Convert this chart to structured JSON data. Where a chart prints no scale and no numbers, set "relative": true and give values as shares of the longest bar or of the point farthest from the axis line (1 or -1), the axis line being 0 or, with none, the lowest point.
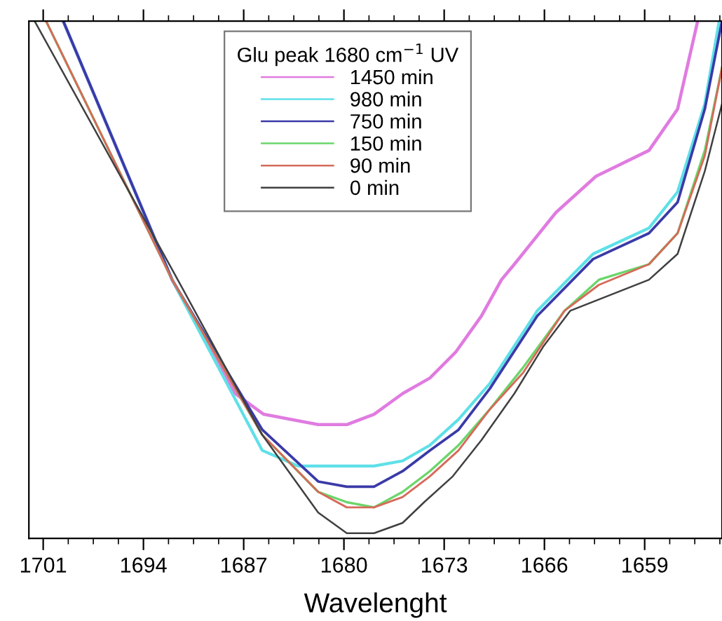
{
  "chart_data": {
    "type": "line",
    "relative": true,
    "xlabel": "Wavelenght",
    "legend_title": "Glu peak 1680 cm$^{−1}$ UV",
    "legend": "top",
    "xlim": [
      1702.0,
      1653.6
    ],
    "xticks": [
      1701,
      1694,
      1687,
      1680,
      1673,
      1666,
      1659
    ],
    "grid": false,
    "marker": "none",
    "line_style": "solid",
    "series": [
      {
        "name": "1450 min",
        "color": "#e07be0",
        "x": [
          1699.6,
          1692.0,
          1687.6,
          1685.6,
          1681.8,
          1679.8,
          1677.9,
          1675.9,
          1674.0,
          1672.2,
          1670.4,
          1669.0,
          1668.1,
          1665.2,
          1662.4,
          1658.7,
          1656.7,
          1655.3
        ],
        "values": [
          1.0,
          0.5,
          0.28,
          0.24,
          0.22,
          0.22,
          0.24,
          0.28,
          0.31,
          0.36,
          0.43,
          0.5,
          0.53,
          0.63,
          0.7,
          0.75,
          0.83,
          1.0
        ]
      },
      {
        "name": "980 min",
        "color": "#5ee0e8",
        "x": [
          1699.6,
          1692.0,
          1685.7,
          1683.2,
          1679.8,
          1677.9,
          1675.9,
          1674.0,
          1672.0,
          1669.8,
          1666.5,
          1662.6,
          1658.7,
          1656.7,
          1654.8,
          1653.8
        ],
        "values": [
          1.0,
          0.5,
          0.17,
          0.14,
          0.14,
          0.14,
          0.15,
          0.18,
          0.23,
          0.3,
          0.44,
          0.55,
          0.6,
          0.67,
          0.84,
          1.0
        ]
      },
      {
        "name": "750 min",
        "color": "#3a3aa8",
        "x": [
          1699.6,
          1692.0,
          1685.7,
          1681.8,
          1679.8,
          1677.9,
          1675.9,
          1674.0,
          1672.0,
          1669.8,
          1666.5,
          1662.6,
          1658.7,
          1656.7,
          1654.8,
          1653.6
        ],
        "values": [
          1.0,
          0.5,
          0.21,
          0.11,
          0.1,
          0.1,
          0.13,
          0.17,
          0.21,
          0.29,
          0.43,
          0.54,
          0.59,
          0.65,
          0.83,
          1.0
        ]
      },
      {
        "name": "150 min",
        "color": "#6ad66a",
        "x": [
          1700.8,
          1692.0,
          1685.7,
          1681.8,
          1679.8,
          1677.9,
          1675.9,
          1674.0,
          1672.0,
          1669.8,
          1667.5,
          1664.6,
          1662.2,
          1658.7,
          1656.7,
          1654.8,
          1653.6
        ],
        "values": [
          1.0,
          0.5,
          0.2,
          0.09,
          0.07,
          0.06,
          0.09,
          0.13,
          0.18,
          0.25,
          0.33,
          0.44,
          0.5,
          0.53,
          0.59,
          0.75,
          0.91
        ]
      },
      {
        "name": "90 min",
        "color": "#d66a5a",
        "x": [
          1700.8,
          1692.0,
          1685.7,
          1681.8,
          1679.8,
          1677.9,
          1675.9,
          1674.0,
          1672.0,
          1669.8,
          1667.5,
          1664.6,
          1662.2,
          1658.7,
          1656.7,
          1654.8,
          1653.6
        ],
        "values": [
          1.0,
          0.5,
          0.2,
          0.09,
          0.06,
          0.06,
          0.08,
          0.12,
          0.17,
          0.25,
          0.32,
          0.44,
          0.49,
          0.53,
          0.59,
          0.74,
          0.91
        ]
      },
      {
        "name": "0 min",
        "color": "#404040",
        "x": [
          1701.6,
          1692.0,
          1685.7,
          1681.8,
          1679.8,
          1677.9,
          1675.9,
          1674.4,
          1672.4,
          1670.4,
          1668.1,
          1666.1,
          1664.2,
          1658.7,
          1656.7,
          1654.8,
          1653.6
        ],
        "values": [
          1.0,
          0.52,
          0.2,
          0.05,
          0.01,
          0.01,
          0.03,
          0.07,
          0.12,
          0.19,
          0.28,
          0.37,
          0.44,
          0.5,
          0.55,
          0.71,
          0.84
        ]
      }
    ]
  }
}
